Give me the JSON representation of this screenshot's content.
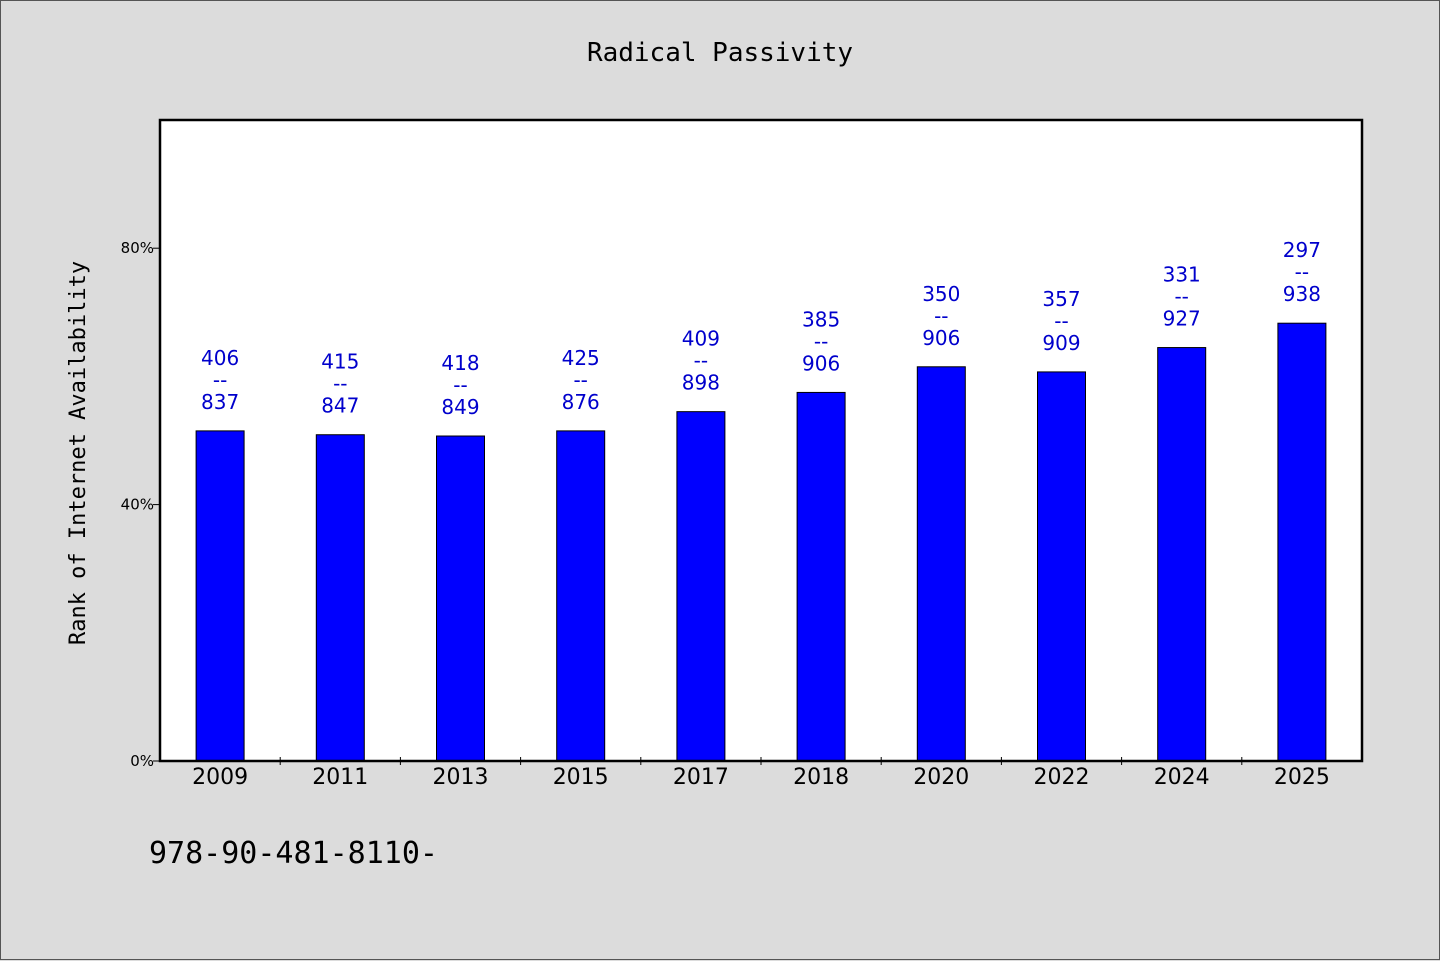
{
  "chart_data": {
    "type": "bar",
    "title": "Radical Passivity",
    "xlabel": "",
    "ylabel": "Rank of Internet Availability",
    "categories": [
      "2009",
      "2011",
      "2013",
      "2015",
      "2017",
      "2018",
      "2020",
      "2022",
      "2024",
      "2025"
    ],
    "values": [
      51.5,
      50.9,
      50.7,
      51.5,
      54.5,
      57.5,
      61.5,
      60.7,
      64.5,
      68.3
    ],
    "data_labels": [
      {
        "top": "406",
        "sep": "--",
        "bottom": "837"
      },
      {
        "top": "415",
        "sep": "--",
        "bottom": "847"
      },
      {
        "top": "418",
        "sep": "--",
        "bottom": "849"
      },
      {
        "top": "425",
        "sep": "--",
        "bottom": "876"
      },
      {
        "top": "409",
        "sep": "--",
        "bottom": "898"
      },
      {
        "top": "385",
        "sep": "--",
        "bottom": "906"
      },
      {
        "top": "350",
        "sep": "--",
        "bottom": "906"
      },
      {
        "top": "357",
        "sep": "--",
        "bottom": "909"
      },
      {
        "top": "331",
        "sep": "--",
        "bottom": "927"
      },
      {
        "top": "297",
        "sep": "--",
        "bottom": "938"
      }
    ],
    "yticks": [
      0,
      40,
      80
    ],
    "ytick_labels": [
      "0%",
      "40%",
      "80%"
    ],
    "ylim": [
      0,
      100
    ],
    "grid": false,
    "bar_color": "#0000ff",
    "label_color": "#0000cc"
  },
  "footer": {
    "text": "978-90-481-8110-"
  }
}
